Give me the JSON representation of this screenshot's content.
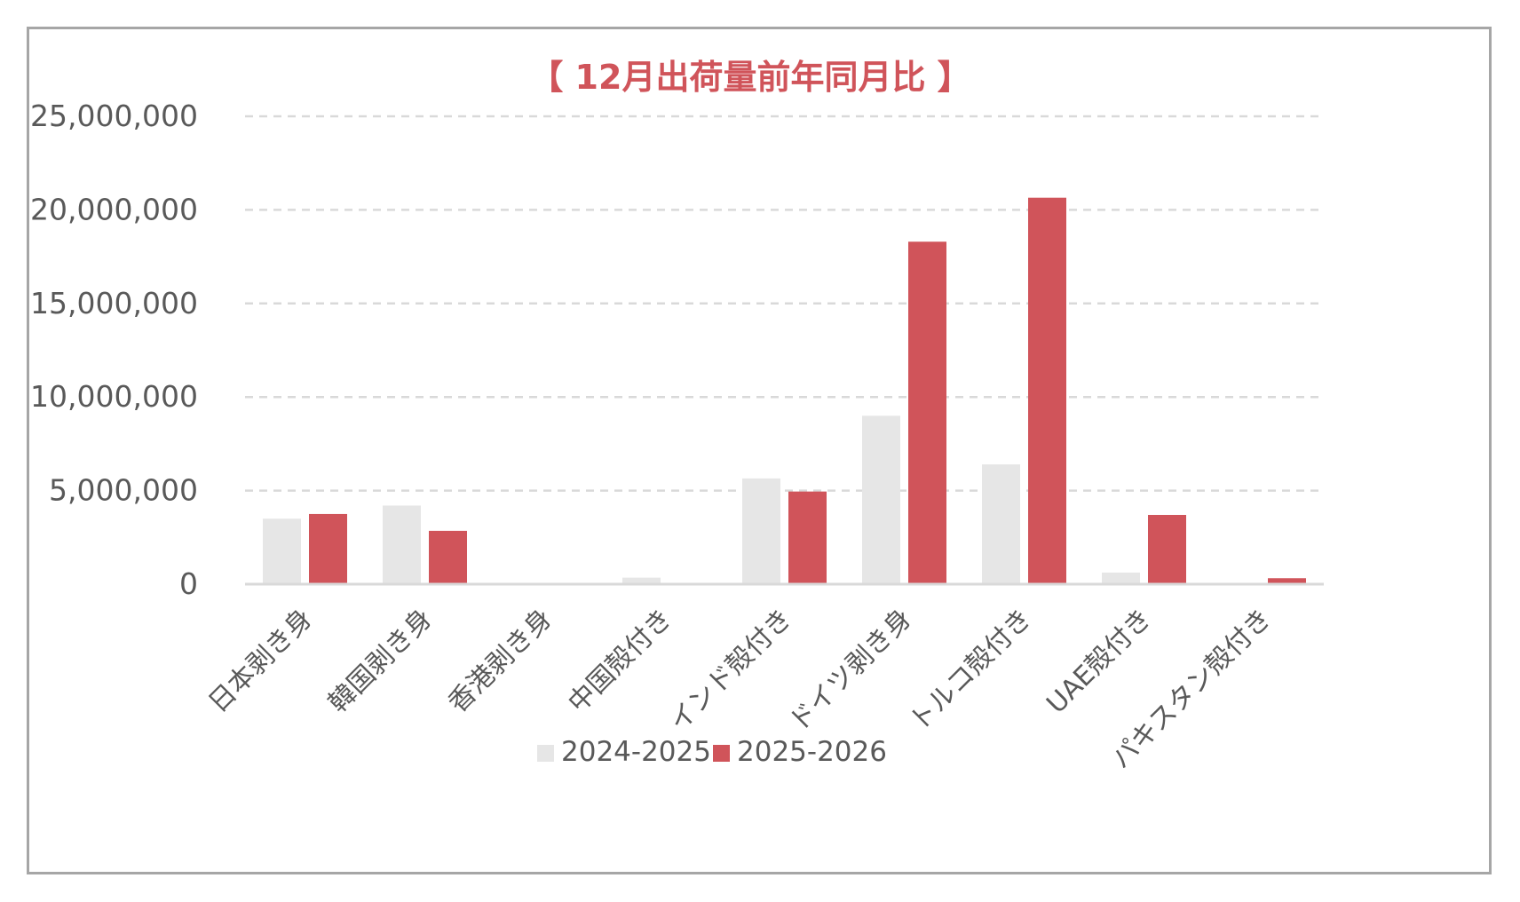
{
  "chart_data": {
    "type": "bar",
    "title": "【 12月出荷量前年同月比 】",
    "xlabel": "",
    "ylabel": "",
    "categories": [
      "日本剥き身",
      "韓国剥き身",
      "香港剥き身",
      "中国殻付き",
      "インド殻付き",
      "ドイツ剥き身",
      "トルコ殻付き",
      "UAE殻付き",
      "パキスタン殻付き"
    ],
    "series": [
      {
        "name": "2024-2025",
        "color": "#e6e6e6",
        "values": [
          3500000,
          4200000,
          0,
          350000,
          5650000,
          9000000,
          6400000,
          620000,
          0
        ]
      },
      {
        "name": "2025-2026",
        "color": "#d0545a",
        "values": [
          3750000,
          2850000,
          0,
          0,
          4950000,
          18300000,
          20650000,
          3700000,
          320000
        ]
      }
    ],
    "ylim": [
      0,
      25000000
    ],
    "yticks": [
      0,
      5000000,
      10000000,
      15000000,
      20000000,
      25000000
    ],
    "ytick_labels": [
      "0",
      "5,000,000",
      "10,000,000",
      "15,000,000",
      "20,000,000",
      "25,000,000"
    ],
    "grid": "horizontal-dashed",
    "legend_position": "bottom-center",
    "title_color": "#d0545a",
    "axis_color": "#d9d9d9",
    "text_color": "#595959"
  }
}
